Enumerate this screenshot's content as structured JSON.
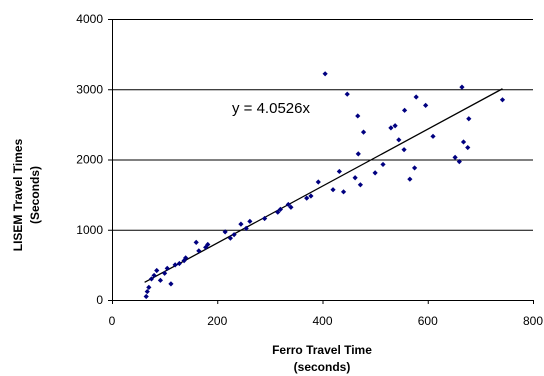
{
  "chart_data": {
    "type": "scatter",
    "title": "",
    "xlabel": [
      "Ferro Travel Time",
      "(seconds)"
    ],
    "ylabel": [
      "LISEM Travel Times",
      "(Seconds)"
    ],
    "xlim": [
      0,
      800
    ],
    "ylim": [
      0,
      4000
    ],
    "xticks": [
      0,
      200,
      400,
      600,
      800
    ],
    "yticks": [
      0,
      1000,
      2000,
      3000,
      4000
    ],
    "grid": {
      "horizontal": true,
      "vertical": false
    },
    "legend": "none",
    "annotation": "y = 4.0526x",
    "trendline": {
      "slope": 4.0526,
      "x_range": [
        62,
        742
      ]
    },
    "colors": {
      "points": "#000080",
      "trendline": "#000000",
      "grid": "#000000"
    },
    "series": [
      {
        "points": [
          [
            65,
            50
          ],
          [
            67,
            120
          ],
          [
            70,
            180
          ],
          [
            75,
            300
          ],
          [
            80,
            350
          ],
          [
            85,
            420
          ],
          [
            92,
            280
          ],
          [
            100,
            380
          ],
          [
            105,
            450
          ],
          [
            112,
            230
          ],
          [
            120,
            500
          ],
          [
            128,
            520
          ],
          [
            137,
            560
          ],
          [
            140,
            600
          ],
          [
            160,
            820
          ],
          [
            165,
            700
          ],
          [
            178,
            750
          ],
          [
            182,
            790
          ],
          [
            215,
            970
          ],
          [
            225,
            880
          ],
          [
            232,
            930
          ],
          [
            245,
            1080
          ],
          [
            255,
            1020
          ],
          [
            262,
            1120
          ],
          [
            290,
            1160
          ],
          [
            315,
            1250
          ],
          [
            320,
            1290
          ],
          [
            335,
            1360
          ],
          [
            340,
            1320
          ],
          [
            370,
            1450
          ],
          [
            378,
            1480
          ],
          [
            392,
            1680
          ],
          [
            405,
            3220
          ],
          [
            420,
            1570
          ],
          [
            432,
            1830
          ],
          [
            440,
            1540
          ],
          [
            447,
            2930
          ],
          [
            462,
            1740
          ],
          [
            467,
            2620
          ],
          [
            468,
            2080
          ],
          [
            472,
            1640
          ],
          [
            478,
            2390
          ],
          [
            500,
            1810
          ],
          [
            515,
            1930
          ],
          [
            530,
            2450
          ],
          [
            538,
            2480
          ],
          [
            545,
            2280
          ],
          [
            555,
            2140
          ],
          [
            556,
            2700
          ],
          [
            566,
            1720
          ],
          [
            575,
            1880
          ],
          [
            578,
            2890
          ],
          [
            596,
            2770
          ],
          [
            610,
            2330
          ],
          [
            652,
            2030
          ],
          [
            660,
            1970
          ],
          [
            665,
            3030
          ],
          [
            668,
            2250
          ],
          [
            676,
            2170
          ],
          [
            678,
            2580
          ],
          [
            742,
            2850
          ]
        ]
      }
    ]
  }
}
